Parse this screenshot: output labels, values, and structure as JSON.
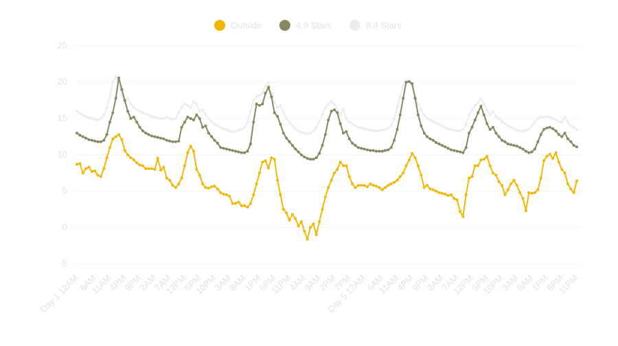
{
  "chart_data": {
    "type": "line",
    "categories": [
      "Day 1 12AM",
      null,
      null,
      null,
      null,
      null,
      "6AM",
      null,
      null,
      null,
      null,
      "11AM",
      null,
      null,
      null,
      null,
      "4PM",
      null,
      null,
      null,
      null,
      "9PM",
      null,
      null,
      null,
      null,
      "2AM",
      null,
      null,
      null,
      null,
      "7AM",
      null,
      null,
      null,
      null,
      "12PM",
      null,
      null,
      null,
      null,
      "5PM",
      null,
      null,
      null,
      null,
      "10PM",
      null,
      null,
      null,
      null,
      "3AM",
      null,
      null,
      null,
      null,
      "8AM",
      null,
      null,
      null,
      null,
      "1PM",
      null,
      null,
      null,
      null,
      "6PM",
      null,
      null,
      null,
      null,
      "11PM",
      null,
      null,
      null,
      null,
      "4AM",
      null,
      null,
      null,
      null,
      "9AM",
      null,
      null,
      null,
      null,
      "2PM",
      null,
      null,
      null,
      null,
      "7PM",
      null,
      null,
      null,
      null,
      "Day 5 12AM",
      null,
      null,
      null,
      null,
      null,
      "6AM",
      null,
      null,
      null,
      null,
      "11AM",
      null,
      null,
      null,
      null,
      "4PM",
      null,
      null,
      null,
      null,
      "9PM",
      null,
      null,
      null,
      null,
      "2AM",
      null,
      null,
      null,
      null,
      "7AM",
      null,
      null,
      null,
      null,
      "12PM",
      null,
      null,
      null,
      null,
      "5PM",
      null,
      null,
      null,
      null,
      "10PM",
      null,
      null,
      null,
      null,
      "3AM",
      null,
      null,
      null,
      null,
      "8AM",
      null,
      null,
      null,
      null,
      "1PM",
      null,
      null,
      null,
      null,
      "6PM",
      null,
      null,
      null,
      null,
      "11PM"
    ],
    "series": [
      {
        "name": "Outside",
        "color": "#f2b705",
        "values": [
          8.7,
          8.8,
          7.5,
          8.1,
          8.3,
          7.7,
          7.8,
          7.2,
          7.0,
          8.1,
          9.6,
          11.0,
          12.2,
          12.5,
          12.8,
          12.1,
          10.6,
          10.0,
          9.6,
          9.3,
          8.9,
          8.6,
          8.5,
          8.1,
          8.1,
          8.1,
          8.0,
          9.5,
          7.9,
          8.3,
          6.8,
          6.5,
          5.8,
          5.5,
          6.0,
          6.8,
          8.5,
          10.3,
          11.2,
          10.5,
          8.0,
          7.2,
          6.0,
          5.5,
          5.4,
          5.6,
          5.7,
          5.3,
          4.8,
          4.6,
          4.5,
          4.3,
          3.3,
          3.3,
          3.5,
          3.0,
          3.0,
          2.8,
          3.3,
          4.5,
          6.0,
          7.5,
          9.0,
          9.2,
          8.2,
          9.6,
          9.4,
          6.5,
          4.5,
          2.5,
          2.0,
          1.0,
          1.8,
          1.2,
          0.2,
          0.8,
          -0.5,
          -1.6,
          0,
          0.5,
          -1.0,
          0.8,
          2.5,
          4.2,
          5.5,
          6.5,
          7.5,
          8.0,
          9.0,
          8.5,
          8.5,
          7.0,
          6.0,
          5.5,
          5.8,
          5.8,
          5.8,
          5.6,
          6.0,
          5.8,
          5.7,
          5.5,
          5.2,
          5.5,
          5.8,
          6.0,
          6.2,
          6.5,
          7.0,
          7.5,
          8.5,
          9.3,
          10.2,
          9.6,
          8.5,
          7.2,
          5.5,
          5.8,
          5.3,
          5.2,
          5.0,
          4.8,
          4.7,
          4.6,
          4.4,
          4.5,
          4.0,
          3.8,
          2.2,
          1.5,
          4.5,
          6.8,
          7.0,
          8.5,
          8.5,
          9.3,
          9.4,
          9.8,
          8.5,
          7.5,
          7.2,
          6.3,
          5.8,
          4.5,
          5.2,
          6.0,
          6.5,
          5.8,
          4.8,
          4.0,
          2.3,
          4.8,
          4.7,
          4.8,
          5.2,
          6.8,
          9.2,
          9.8,
          10.1,
          9.5,
          10.3,
          9.0,
          8.0,
          7.5,
          6.0,
          5.3,
          4.8,
          6.4
        ]
      },
      {
        "name": "4.9 Stars",
        "color": "#878760",
        "values": [
          13.0,
          12.7,
          12.5,
          12.3,
          12.1,
          12.0,
          11.9,
          11.8,
          11.8,
          12.0,
          12.8,
          14.5,
          15.8,
          17.8,
          20.6,
          19.0,
          17.5,
          16.0,
          15.0,
          15.2,
          14.5,
          13.8,
          13.3,
          13.0,
          12.8,
          12.6,
          12.5,
          12.4,
          12.3,
          12.2,
          12.0,
          11.9,
          11.8,
          11.8,
          11.9,
          13.8,
          14.5,
          15.2,
          15.0,
          14.8,
          15.5,
          15.0,
          13.8,
          14.0,
          13.0,
          12.5,
          12.0,
          11.6,
          11.0,
          10.9,
          10.8,
          10.7,
          10.6,
          10.5,
          10.4,
          10.3,
          10.3,
          10.5,
          11.5,
          14.5,
          17.0,
          16.8,
          17.0,
          18.5,
          19.3,
          18.0,
          15.8,
          15.3,
          14.2,
          13.0,
          12.3,
          11.8,
          11.3,
          10.8,
          10.4,
          10.0,
          9.7,
          9.5,
          9.4,
          9.4,
          9.6,
          10.2,
          11.3,
          12.8,
          14.8,
          16.0,
          16.2,
          15.8,
          14.3,
          13.0,
          13.2,
          12.2,
          11.6,
          11.3,
          11.0,
          10.9,
          10.8,
          10.7,
          10.6,
          10.6,
          10.5,
          10.5,
          10.5,
          10.6,
          10.7,
          11.0,
          12.0,
          13.5,
          15.5,
          17.8,
          20.0,
          20.1,
          19.8,
          17.8,
          15.5,
          14.0,
          13.0,
          12.5,
          12.2,
          12.0,
          11.7,
          11.5,
          11.3,
          11.1,
          10.9,
          10.7,
          10.6,
          10.5,
          10.4,
          10.3,
          11.0,
          13.0,
          13.8,
          14.8,
          15.8,
          16.7,
          15.5,
          14.3,
          13.5,
          13.8,
          13.0,
          12.5,
          12.0,
          11.8,
          11.5,
          11.4,
          11.3,
          11.2,
          11.0,
          10.8,
          10.5,
          10.3,
          10.4,
          10.8,
          11.8,
          12.8,
          13.5,
          13.7,
          13.8,
          13.6,
          13.3,
          12.8,
          12.5,
          13.0,
          12.2,
          11.8,
          11.3,
          11.1
        ]
      },
      {
        "name": "8.4 Stars",
        "color": "#ececec",
        "values": [
          16.0,
          15.7,
          15.5,
          15.3,
          15.1,
          15.0,
          14.9,
          14.8,
          15.0,
          15.5,
          16.5,
          18.0,
          20.0,
          20.8,
          19.5,
          18.2,
          17.2,
          17.8,
          17.0,
          16.5,
          16.2,
          16.0,
          15.8,
          15.6,
          15.5,
          15.3,
          15.2,
          15.1,
          15.0,
          15.0,
          15.2,
          15.0,
          14.9,
          15.0,
          15.8,
          16.5,
          17.0,
          16.8,
          16.5,
          17.3,
          17.0,
          16.0,
          16.2,
          15.5,
          15.0,
          14.6,
          14.2,
          14.0,
          13.8,
          13.6,
          13.5,
          13.3,
          13.2,
          13.2,
          13.4,
          13.5,
          13.8,
          14.5,
          16.0,
          17.5,
          18.0,
          18.2,
          18.5,
          19.5,
          20.0,
          18.5,
          17.2,
          16.5,
          16.8,
          15.8,
          15.0,
          14.5,
          14.0,
          13.6,
          13.3,
          13.1,
          13.0,
          12.9,
          13.0,
          13.3,
          13.8,
          14.5,
          15.5,
          16.5,
          17.0,
          17.3,
          17.0,
          16.2,
          15.5,
          16.3,
          15.0,
          14.5,
          14.3,
          14.0,
          13.8,
          13.7,
          13.6,
          13.5,
          13.4,
          13.4,
          13.3,
          13.3,
          13.4,
          13.5,
          13.7,
          14.0,
          15.0,
          16.5,
          18.0,
          19.5,
          20.3,
          20.0,
          19.3,
          18.0,
          17.0,
          16.2,
          15.5,
          15.0,
          14.8,
          14.6,
          14.4,
          14.2,
          14.0,
          13.8,
          13.6,
          13.5,
          13.4,
          13.3,
          13.3,
          13.5,
          14.2,
          15.5,
          16.2,
          16.8,
          17.2,
          17.8,
          17.0,
          16.2,
          15.5,
          16.0,
          15.3,
          15.0,
          14.6,
          14.3,
          14.0,
          13.8,
          13.6,
          13.4,
          13.3,
          13.3,
          13.4,
          13.6,
          14.0,
          14.5,
          15.0,
          15.2,
          15.2,
          15.3,
          15.2,
          15.0,
          14.8,
          14.6,
          14.5,
          15.2,
          14.5,
          14.0,
          13.8,
          13.5
        ]
      }
    ],
    "ylim": [
      -5,
      25
    ],
    "yticks": [
      -5,
      0,
      5,
      10,
      15,
      20,
      25
    ],
    "grid": true
  }
}
